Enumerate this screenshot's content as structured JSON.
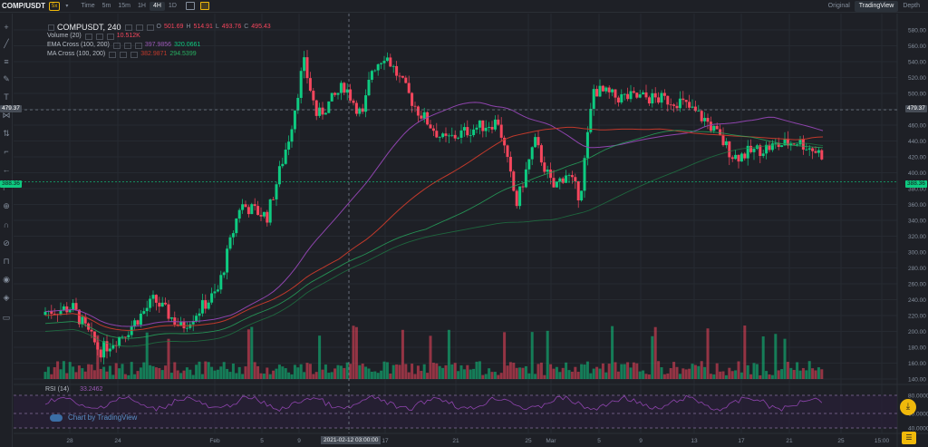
{
  "topbar": {
    "pair": "COMP/USDT",
    "leverage": "5x",
    "caret": "▾",
    "timeframes": [
      "Time",
      "5m",
      "15m",
      "1H",
      "4H",
      "1D"
    ],
    "active_timeframe": "4H",
    "views": [
      "Original",
      "TradingView",
      "Depth"
    ],
    "active_view": "TradingView"
  },
  "legend": {
    "symbol": "COMPUSDT, 240",
    "open_label": "O",
    "open": "501.69",
    "high_label": "H",
    "high": "514.91",
    "low_label": "L",
    "low": "493.76",
    "close_label": "C",
    "close": "495.43",
    "volume_name": "Volume (20)",
    "volume_value": "10.512K",
    "ema_name": "EMA Cross (100, 200)",
    "ema_a": "397.9856",
    "ema_b": "320.0661",
    "ma_name": "MA Cross (100, 200)",
    "ma_a": "382.9871",
    "ma_b": "294.5399"
  },
  "rsi": {
    "name": "RSI (14)",
    "value": "33.2462",
    "levels": [
      "80.0000",
      "60.0000",
      "40.0000"
    ]
  },
  "price_axis": [
    "580.00",
    "560.00",
    "540.00",
    "520.00",
    "500.00",
    "480.00",
    "460.00",
    "440.00",
    "420.00",
    "400.00",
    "380.00",
    "360.00",
    "340.00",
    "320.00",
    "300.00",
    "280.00",
    "260.00",
    "240.00",
    "220.00",
    "200.00",
    "180.00",
    "160.00",
    "140.00"
  ],
  "crosshair_price": "479.37",
  "last_price": "388.36",
  "time_axis": [
    "28",
    "24",
    "Feb",
    "5",
    "9",
    "17",
    "21",
    "25",
    "Mar",
    "5",
    "9",
    "13",
    "17",
    "21",
    "25",
    "15:00"
  ],
  "crosshair_date": "2021-02-12 03:00:00",
  "watermark": "Chart by TradingView",
  "colors": {
    "up": "#0ecb81",
    "down": "#f6465d",
    "accent": "#f0b90b",
    "bg": "#1e2026"
  },
  "icons": [
    "crosshair-icon",
    "trend-line-icon",
    "fib-icon",
    "brush-icon",
    "text-icon",
    "pattern-icon",
    "prediction-icon",
    "ruler-icon",
    "back-icon",
    "measure-icon",
    "zoom-icon",
    "magnet-icon",
    "lock-draw-icon",
    "lock-icon",
    "eye-icon",
    "layers-icon",
    "trash-icon"
  ],
  "fab": {
    "download_icon": "⤓",
    "chat_icon": "☰"
  }
}
